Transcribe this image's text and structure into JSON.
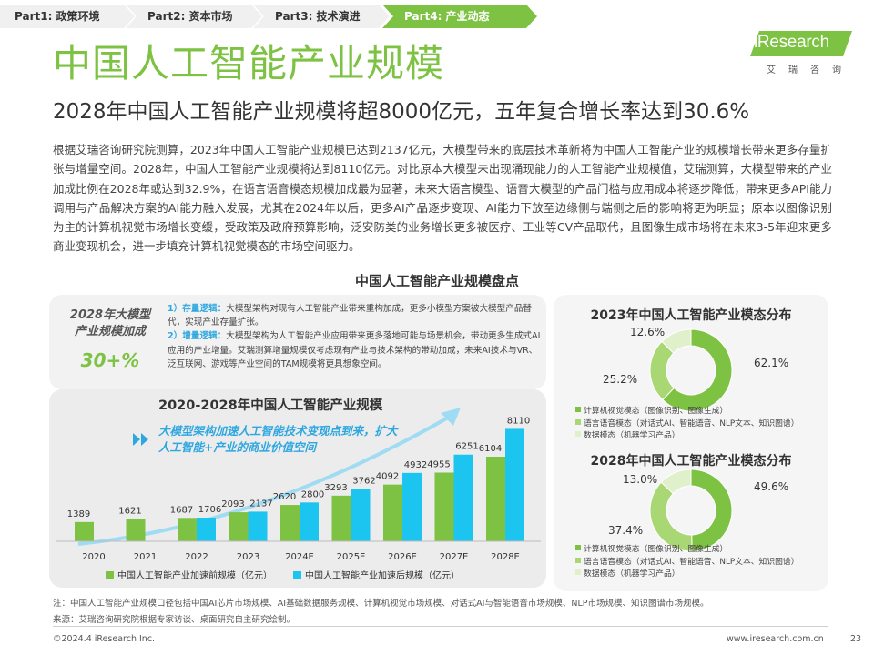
{
  "nav": {
    "tabs": [
      {
        "label": "Part1: 政策环境",
        "active": false
      },
      {
        "label": "Part2: 资本市场",
        "active": false
      },
      {
        "label": "Part3: 技术演进",
        "active": false
      },
      {
        "label": "Part4: 产业动态",
        "active": true
      }
    ]
  },
  "logo": {
    "brand": "iResearch",
    "sub": "艾瑞咨询"
  },
  "header": {
    "title": "中国人工智能产业规模",
    "subtitle": "2028年中国人工智能产业规模将超8000亿元，五年复合增长率达到30.6%"
  },
  "intro": "根据艾瑞咨询研究院测算，2023年中国人工智能产业规模已达到2137亿元，大模型带来的底层技术革新将为中国人工智能产业的规模增长带来更多存量扩张与增量空间。2028年，中国人工智能产业规模将达到8110亿元。对比原本大模型未出现涌现能力的人工智能产业规模值，艾瑞测算，大模型带来的产业加成比例在2028年或达到32.9%，在语言语音模态规模加成最为显著，未来大语言模型、语音大模型的产品门槛与应用成本将逐步降低，带来更多API能力调用与产品解决方案的AI能力融入发展，尤其在2024年以后，更多AI产品逐步变现、AI能力下放至边缘侧与端侧之后的影响将更为明显；原本以图像识别为主的计算机视觉市场增长变缓，受政策及政府预算影响，泛安防类的业务增长更多被医疗、工业等CV产品取代，且图像生成市场将在未来3-5年迎来更多商业变现机会，进一步填充计算机视觉模态的市场空间驱力。",
  "section_title": "中国人工智能产业规模盘点",
  "callout": {
    "title_line1": "2028年大模型",
    "title_line2": "产业规模加成",
    "value": "30+%",
    "item1_key": "1）存量逻辑：",
    "item1_text": "大模型架构对现有人工智能产业带来重构加成，更多小模型方案被大模型产品替代，实现产业存量扩张。",
    "item2_key": "2）增量逻辑：",
    "item2_text": "大模型架构为人工智能产业应用带来更多落地可能与场景机会，带动更多生成式AI应用的产业增量。艾瑞测算增量规模仅考虑现有产业与技术架构的带动加成，未来AI技术与VR、泛互联网、游戏等产业空间的TAM规模将更具想象空间。"
  },
  "chart_data": [
    {
      "type": "bar",
      "title": "2020-2028年中国人工智能产业规模",
      "annotation_line1": "大模型架构加速人工智能技术变现点到来，扩大",
      "annotation_line2": "人工智能+产业的商业价值空间",
      "categories": [
        "2020",
        "2021",
        "2022",
        "2023",
        "2024E",
        "2025E",
        "2026E",
        "2027E",
        "2028E"
      ],
      "series": [
        {
          "name": "中国人工智能产业加速前规模（亿元）",
          "color": "#7dc242",
          "values": [
            1389,
            1621,
            1687,
            2093,
            2620,
            3293,
            4092,
            4955,
            6104
          ]
        },
        {
          "name": "中国人工智能产业加速后规模（亿元）",
          "color": "#1cc4f0",
          "values": [
            null,
            null,
            1706,
            2137,
            2800,
            3762,
            4932,
            6251,
            8110
          ]
        }
      ],
      "ylim": [
        0,
        8400
      ]
    },
    {
      "type": "pie",
      "title": "2023年中国人工智能产业模态分布",
      "labels": [
        "计算机视觉模态（图像识别、图像生成）",
        "语言语音模态（对话式AI、智能语音、NLP文本、知识图谱）",
        "数据模态（机器学习产品）"
      ],
      "values": [
        62.1,
        25.2,
        12.6
      ],
      "value_labels": [
        "62.1%",
        "25.2%",
        "12.6%"
      ],
      "colors": [
        "#7dc242",
        "#a9d774",
        "#dff0cb"
      ]
    },
    {
      "type": "pie",
      "title": "2028年中国人工智能产业模态分布",
      "labels": [
        "计算机视觉模态（图像识别、图像生成）",
        "语言语音模态（对话式AI、智能语音、NLP文本、知识图谱）",
        "数据模态（机器学习产品）"
      ],
      "values": [
        49.6,
        37.4,
        13.0
      ],
      "value_labels": [
        "49.6%",
        "37.4%",
        "13.0%"
      ],
      "colors": [
        "#7dc242",
        "#a9d774",
        "#dff0cb"
      ]
    }
  ],
  "notes": {
    "note": "注：中国人工智能产业规模口径包括中国AI芯片市场规模、AI基础数据服务规模、计算机视觉市场规模、对话式AI与智能语音市场规模、NLP市场规模、知识图谱市场规模。",
    "source": "来源：艾瑞咨询研究院根据专家访谈、桌面研究自主研究绘制。"
  },
  "footer": {
    "copyright": "©2024.4 iResearch Inc.",
    "url": "www.iresearch.com.cn",
    "page": "23"
  }
}
